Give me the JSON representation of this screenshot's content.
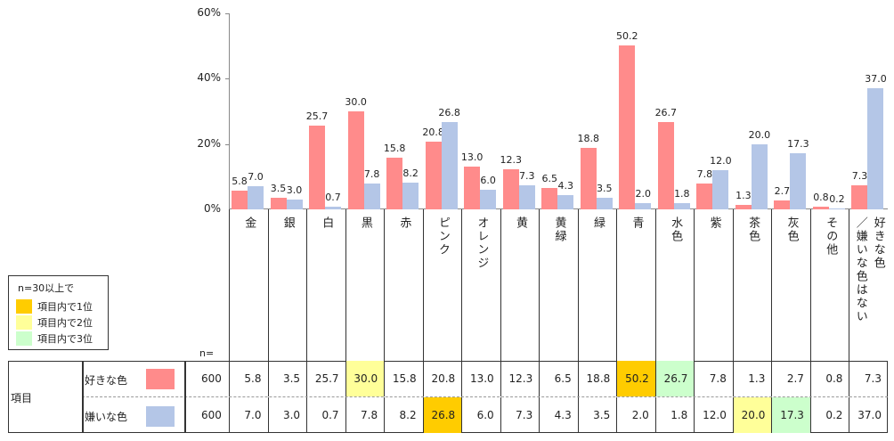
{
  "chart_data": {
    "type": "bar",
    "ylim": [
      0,
      60
    ],
    "yticks": [
      "0%",
      "20%",
      "40%",
      "60%"
    ],
    "ytick_values": [
      0,
      20,
      40,
      60
    ],
    "categories": [
      [
        "金"
      ],
      [
        "銀"
      ],
      [
        "白"
      ],
      [
        "黒"
      ],
      [
        "赤"
      ],
      [
        "ピンク"
      ],
      [
        "オレンジ"
      ],
      [
        "黄"
      ],
      [
        "黄緑"
      ],
      [
        "緑"
      ],
      [
        "青"
      ],
      [
        "水色"
      ],
      [
        "紫"
      ],
      [
        "茶色"
      ],
      [
        "灰色"
      ],
      [
        "その他"
      ],
      [
        "好きな色",
        "／嫌いな色はない"
      ]
    ],
    "series": [
      {
        "name": "好きな色",
        "color": "#ff8b8b",
        "n": "600",
        "values": [
          5.8,
          3.5,
          25.7,
          30.0,
          15.8,
          20.8,
          13.0,
          12.3,
          6.5,
          18.8,
          50.2,
          26.7,
          7.8,
          1.3,
          2.7,
          0.8,
          7.3
        ],
        "labels": [
          "5.8",
          "3.5",
          "25.7",
          "30.0",
          "15.8",
          "20.8",
          "13.0",
          "12.3",
          "6.5",
          "18.8",
          "50.2",
          "26.7",
          "7.8",
          "1.3",
          "2.7",
          "0.8",
          "7.3"
        ],
        "highlights": [
          null,
          null,
          null,
          2,
          null,
          null,
          null,
          null,
          null,
          null,
          1,
          3,
          null,
          null,
          null,
          null,
          null
        ]
      },
      {
        "name": "嫌いな色",
        "color": "#b4c6e7",
        "n": "600",
        "values": [
          7.0,
          3.0,
          0.7,
          7.8,
          8.2,
          26.8,
          6.0,
          7.3,
          4.3,
          3.5,
          2.0,
          1.8,
          12.0,
          20.0,
          17.3,
          0.2,
          37.0
        ],
        "labels": [
          "7.0",
          "3.0",
          "0.7",
          "7.8",
          "8.2",
          "26.8",
          "6.0",
          "7.3",
          "4.3",
          "3.5",
          "2.0",
          "1.8",
          "12.0",
          "20.0",
          "17.3",
          "0.2",
          "37.0"
        ],
        "highlights": [
          null,
          null,
          null,
          null,
          null,
          1,
          null,
          null,
          null,
          null,
          null,
          null,
          null,
          2,
          3,
          null,
          null
        ]
      }
    ]
  },
  "table": {
    "row_header": "項目",
    "n_label": "n="
  },
  "legend": {
    "title": "n=30以上で",
    "items": [
      {
        "label": "項目内で1位",
        "color": "#ffcc00"
      },
      {
        "label": "項目内で2位",
        "color": "#ffff99"
      },
      {
        "label": "項目内で3位",
        "color": "#ccffcc"
      }
    ]
  }
}
